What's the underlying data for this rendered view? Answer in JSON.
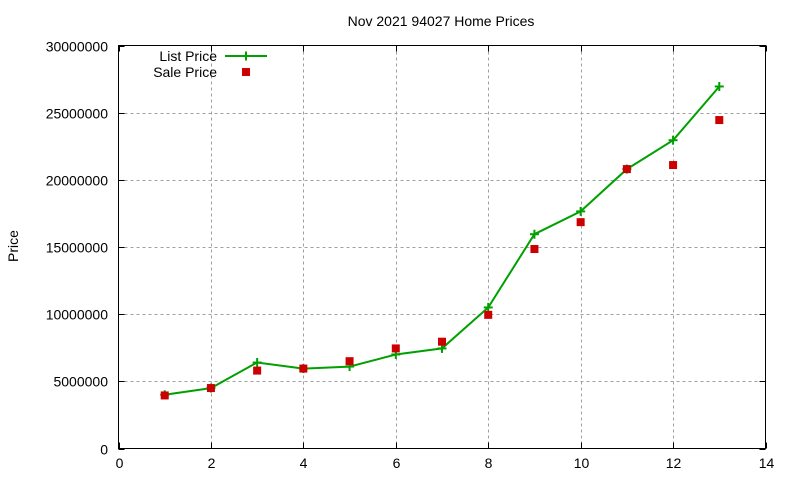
{
  "chart_data": {
    "type": "line",
    "title": "Nov 2021 94027 Home Prices",
    "xlabel": "",
    "ylabel": "Price",
    "xlim": [
      0,
      14
    ],
    "ylim": [
      0,
      30000000
    ],
    "x_ticks": [
      0,
      2,
      4,
      6,
      8,
      10,
      12,
      14
    ],
    "y_ticks": [
      0,
      5000000,
      10000000,
      15000000,
      20000000,
      25000000,
      30000000
    ],
    "y_tick_labels": [
      "0",
      "5000000",
      "10000000",
      "15000000",
      "20000000",
      "25000000",
      "30000000"
    ],
    "grid": true,
    "legend_position": "top-left",
    "x": [
      1,
      2,
      3,
      4,
      5,
      6,
      7,
      8,
      9,
      10,
      11,
      12,
      13
    ],
    "series": [
      {
        "name": "List Price",
        "style": "linespoints",
        "marker": "plus",
        "color": "#00a000",
        "values": [
          4000000,
          4500000,
          6400000,
          5950000,
          6100000,
          7000000,
          7450000,
          10500000,
          15950000,
          17650000,
          20800000,
          22950000,
          26950000
        ]
      },
      {
        "name": "Sale Price",
        "style": "points",
        "marker": "square",
        "color": "#cc0000",
        "values": [
          3950000,
          4500000,
          5800000,
          5950000,
          6500000,
          7450000,
          7950000,
          9950000,
          14850000,
          16850000,
          20800000,
          21100000,
          24450000
        ]
      }
    ]
  }
}
